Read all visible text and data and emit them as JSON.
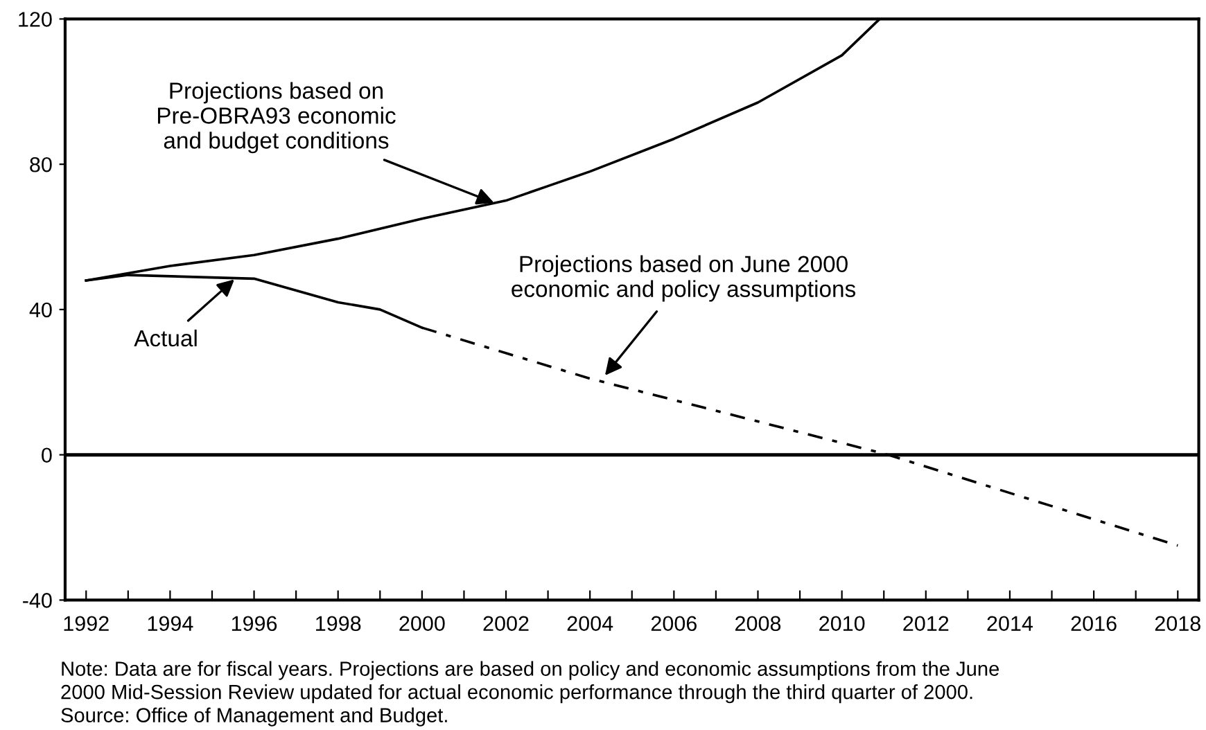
{
  "chart_data": {
    "type": "line",
    "x": [
      1992,
      1994,
      1996,
      1998,
      2000,
      2002,
      2003,
      2004,
      2006,
      2008,
      2010,
      2010.9
    ],
    "series": [
      {
        "color": "#000000",
        "line_style": "solid",
        "values": [
          48,
          52,
          55,
          59.5,
          65,
          70,
          74,
          78,
          87,
          97,
          110,
          120
        ]
      },
      {
        "color": "#000000",
        "line_style": "solid",
        "x": [
          1992,
          1993,
          1996,
          1998,
          1999,
          2000
        ],
        "values": [
          48,
          49.5,
          48.5,
          42,
          40,
          35
        ]
      },
      {
        "color": "#000000",
        "line_style": "dashdot",
        "x": [
          2000,
          2004,
          2011.1,
          2018
        ],
        "values": [
          35,
          21,
          0,
          -25
        ]
      }
    ],
    "xlim": [
      1991.5,
      2018.5
    ],
    "ylim": [
      -40,
      120
    ],
    "xticks": [
      1992,
      {
        "value": 1993,
        "label": null
      },
      1994,
      {
        "value": 1995,
        "label": null
      },
      1996,
      {
        "value": 1997,
        "label": null
      },
      1998,
      {
        "value": 1999,
        "label": null
      },
      2000,
      {
        "value": 2001,
        "label": null
      },
      2002,
      {
        "value": 2003,
        "label": null
      },
      2004,
      {
        "value": 2005,
        "label": null
      },
      2006,
      {
        "value": 2007,
        "label": null
      },
      2008,
      {
        "value": 2009,
        "label": null
      },
      2010,
      {
        "value": 2011,
        "label": null
      },
      2012,
      {
        "value": 2013,
        "label": null
      },
      2014,
      {
        "value": 2015,
        "label": null
      },
      2016,
      {
        "value": 2017,
        "label": null
      },
      2018
    ],
    "yticks": [
      -40,
      0,
      40,
      80,
      120
    ],
    "ref_lines": [
      {
        "axis": "y",
        "value": 0,
        "color": "#000000"
      }
    ],
    "grid": false,
    "legend": false,
    "marker": "none",
    "annotations": [
      {
        "text": "Projections based on\nPre-OBRA93 economic\nand budget conditions",
        "x": 2001.8,
        "y": 69
      },
      {
        "text": "Actual",
        "x": 1995.6,
        "y": 49
      },
      {
        "text": "Projections based on June 2000\neconomic and policy assumptions",
        "x": 2004.3,
        "y": 21
      },
      "Note: Data are for fiscal years. Projections are based on policy and economic assumptions from the June\n2000 Mid-Session Review updated for actual economic performance through the third quarter of 2000.\nSource: Office of Management and Budget."
    ]
  }
}
